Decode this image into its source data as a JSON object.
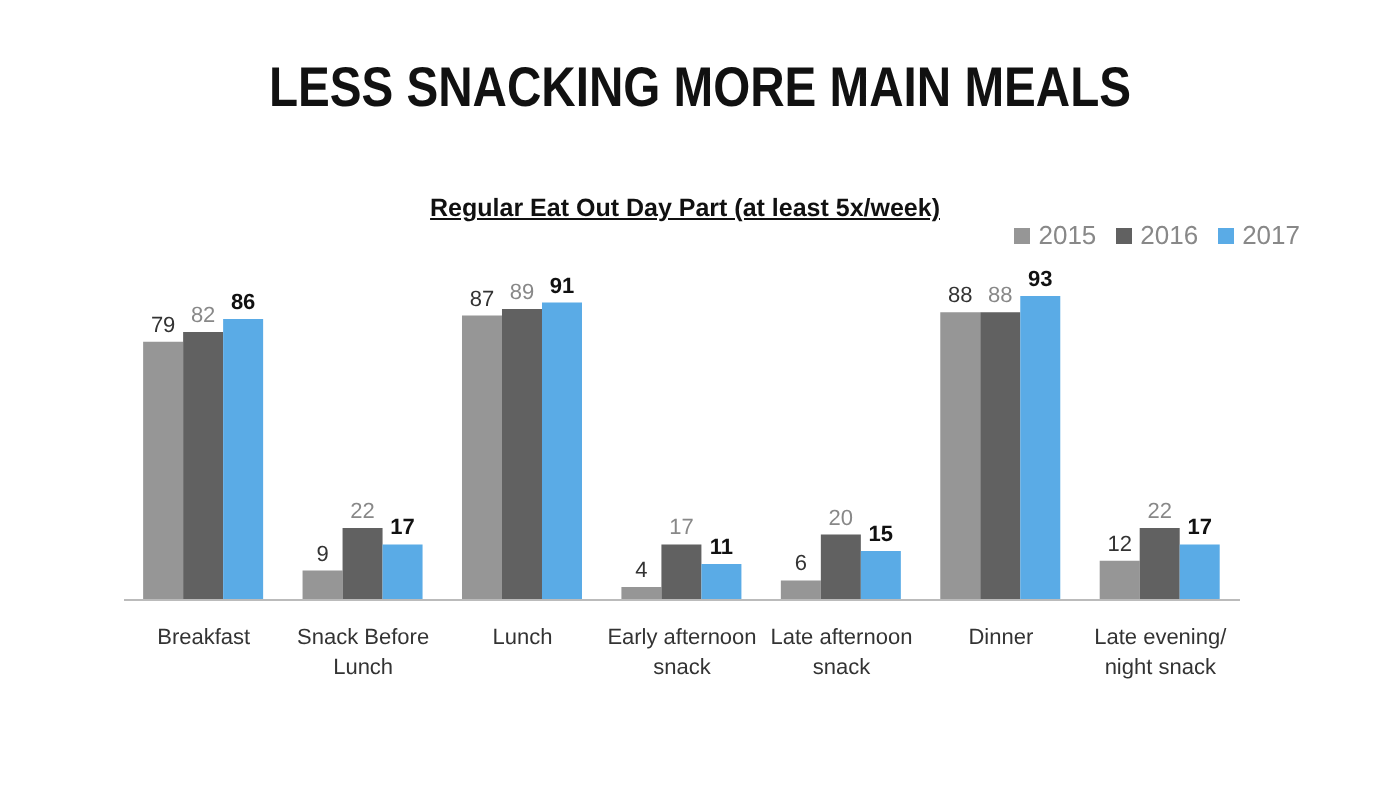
{
  "chart_data": {
    "type": "bar",
    "title": "LESS SNACKING MORE MAIN MEALS",
    "subtitle": "Regular Eat Out Day Part (at least 5x/week)",
    "categories": [
      "Breakfast",
      "Snack Before Lunch",
      "Lunch",
      "Early afternoon snack",
      "Late afternoon snack",
      "Dinner",
      "Late evening/ night snack"
    ],
    "series": [
      {
        "name": "2015",
        "color": "#969696",
        "values": [
          79,
          9,
          87,
          4,
          6,
          88,
          12
        ]
      },
      {
        "name": "2016",
        "color": "#616161",
        "values": [
          82,
          22,
          89,
          17,
          20,
          88,
          22
        ]
      },
      {
        "name": "2017",
        "color": "#5aabe6",
        "values": [
          86,
          17,
          91,
          11,
          15,
          93,
          17
        ]
      }
    ],
    "data_labels": true,
    "legend": "top right",
    "grid": false
  }
}
